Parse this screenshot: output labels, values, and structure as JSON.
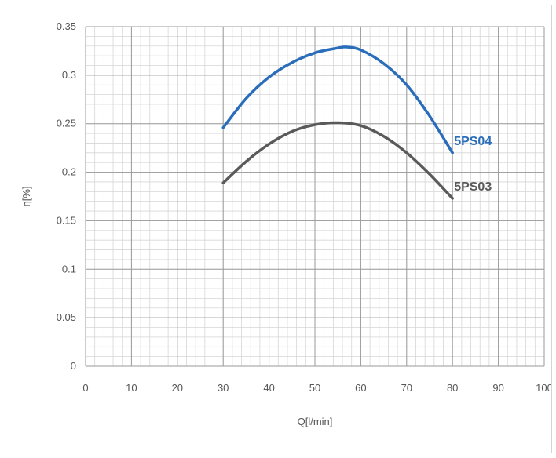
{
  "chart_data": {
    "type": "line",
    "title": "",
    "xlabel": "Q[l/min]",
    "ylabel": "η[%]",
    "xlim": [
      0,
      100
    ],
    "ylim": [
      0,
      0.35
    ],
    "xticks": [
      "0",
      "10",
      "20",
      "30",
      "40",
      "50",
      "60",
      "70",
      "80",
      "90",
      "100"
    ],
    "yticks": [
      "0",
      "0.05",
      "0.1",
      "0.15",
      "0.2",
      "0.25",
      "0.3",
      "0.35"
    ],
    "grid": "on",
    "series": [
      {
        "name": "5PS04",
        "color": "#2a6ebb",
        "x": [
          30,
          35,
          40,
          45,
          50,
          55,
          57,
          60,
          65,
          70,
          75,
          80
        ],
        "y": [
          0.246,
          0.276,
          0.298,
          0.313,
          0.323,
          0.328,
          0.329,
          0.326,
          0.312,
          0.29,
          0.258,
          0.22
        ]
      },
      {
        "name": "5PS03",
        "color": "#5a5a5a",
        "x": [
          30,
          35,
          40,
          45,
          50,
          55,
          60,
          65,
          70,
          75,
          80
        ],
        "y": [
          0.189,
          0.211,
          0.229,
          0.242,
          0.249,
          0.251,
          0.248,
          0.237,
          0.22,
          0.198,
          0.173
        ]
      }
    ]
  }
}
